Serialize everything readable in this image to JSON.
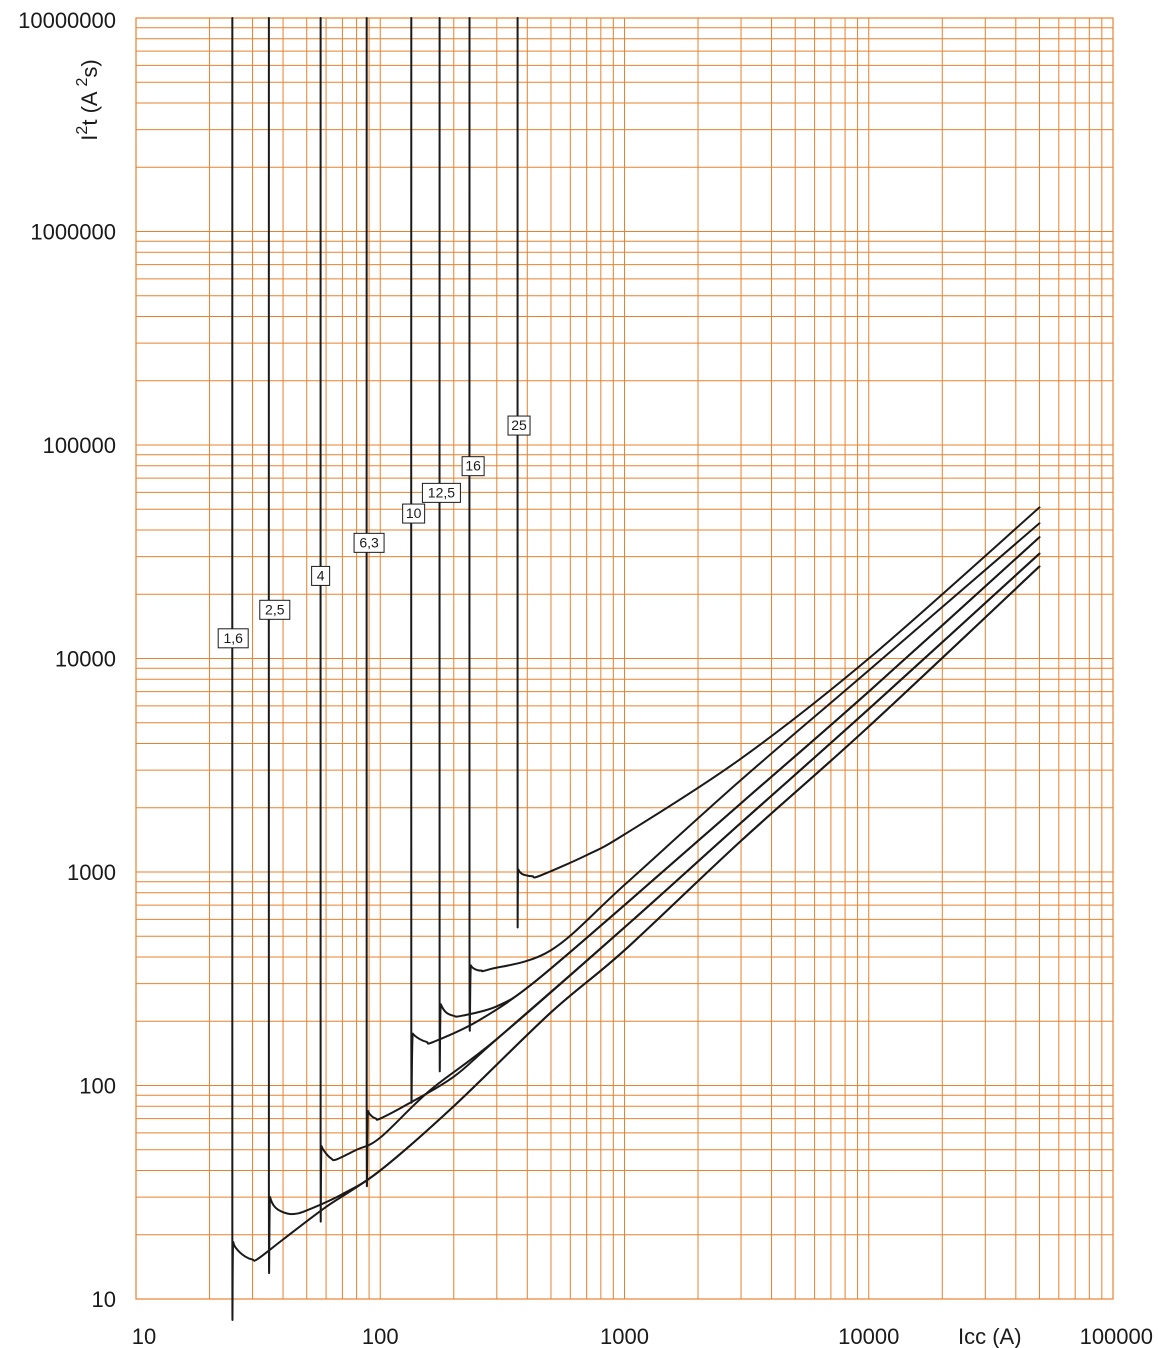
{
  "chart_data": {
    "type": "line",
    "title": "",
    "xlabel": "Icc (A)",
    "ylabel_parts": {
      "base": "I",
      "sup1": "2",
      "mid": "t (A ",
      "sup2": "2",
      "end": "s)"
    },
    "x_scale": "log",
    "y_scale": "log",
    "xlim": [
      10,
      100000
    ],
    "ylim": [
      10,
      10000000
    ],
    "grid": true,
    "grid_color": "#e8822e",
    "curve_color": "#1a1a1a",
    "x_ticks": [
      {
        "value": 10,
        "label": "10"
      },
      {
        "value": 100,
        "label": "100"
      },
      {
        "value": 1000,
        "label": "1000"
      },
      {
        "value": 10000,
        "label": "10000"
      },
      {
        "value": 100000,
        "label": "100000"
      }
    ],
    "y_ticks": [
      {
        "value": 10,
        "label": "10"
      },
      {
        "value": 100,
        "label": "100"
      },
      {
        "value": 1000,
        "label": "1000"
      },
      {
        "value": 10000,
        "label": "10000"
      },
      {
        "value": 100000,
        "label": "100000"
      },
      {
        "value": 1000000,
        "label": "1000000"
      },
      {
        "value": 10000000,
        "label": "10000000"
      }
    ],
    "series": [
      {
        "name": "1,6",
        "label_at": [
          25,
          12500
        ],
        "points": [
          [
            24.8,
            10000000
          ],
          [
            24.8,
            22
          ],
          [
            25,
            18.5
          ],
          [
            26,
            17
          ],
          [
            28,
            15.8
          ],
          [
            30,
            15.3
          ],
          [
            31.5,
            15.4
          ],
          [
            40,
            19
          ],
          [
            60,
            27
          ],
          [
            100,
            40
          ],
          [
            200,
            80
          ],
          [
            500,
            220
          ],
          [
            1000,
            430
          ],
          [
            3000,
            1400
          ],
          [
            10000,
            4800
          ],
          [
            50000,
            27000
          ]
        ]
      },
      {
        "name": "2,5",
        "label_at": [
          37,
          17000
        ],
        "points": [
          [
            35,
            10000000
          ],
          [
            35,
            35
          ],
          [
            35.4,
            30
          ],
          [
            37,
            27
          ],
          [
            40,
            25.5
          ],
          [
            44,
            25
          ],
          [
            50,
            26
          ],
          [
            70,
            31
          ],
          [
            100,
            40
          ],
          [
            200,
            80
          ],
          [
            500,
            220
          ],
          [
            1000,
            430
          ],
          [
            3000,
            1400
          ],
          [
            10000,
            4800
          ],
          [
            50000,
            27000
          ]
        ]
      },
      {
        "name": "4",
        "label_at": [
          57,
          24500
        ],
        "points": [
          [
            57,
            10000000
          ],
          [
            57,
            58
          ],
          [
            57.5,
            52
          ],
          [
            60,
            48
          ],
          [
            63,
            45.5
          ],
          [
            66,
            45
          ],
          [
            80,
            50
          ],
          [
            100,
            57
          ],
          [
            160,
            95
          ],
          [
            300,
            165
          ],
          [
            1000,
            550
          ],
          [
            3000,
            1700
          ],
          [
            10000,
            5800
          ],
          [
            50000,
            31000
          ]
        ]
      },
      {
        "name": "6,3",
        "label_at": [
          90,
          35000
        ],
        "points": [
          [
            88,
            10000000
          ],
          [
            88,
            82
          ],
          [
            89,
            76
          ],
          [
            92,
            72
          ],
          [
            96,
            70
          ],
          [
            100,
            70
          ],
          [
            130,
            82
          ],
          [
            200,
            110
          ],
          [
            300,
            165
          ],
          [
            1000,
            550
          ],
          [
            3000,
            1700
          ],
          [
            10000,
            5800
          ],
          [
            50000,
            31000
          ]
        ]
      },
      {
        "name": "10",
        "label_at": [
          137,
          48000
        ],
        "points": [
          [
            134,
            10000000
          ],
          [
            134,
            190
          ],
          [
            136,
            175
          ],
          [
            145,
            165
          ],
          [
            155,
            160
          ],
          [
            165,
            160
          ],
          [
            250,
            200
          ],
          [
            420,
            300
          ],
          [
            1000,
            700
          ],
          [
            3000,
            2100
          ],
          [
            10000,
            7000
          ],
          [
            50000,
            37000
          ]
        ]
      },
      {
        "name": "12,5",
        "label_at": [
          178,
          60000
        ],
        "points": [
          [
            175,
            10000000
          ],
          [
            175,
            260
          ],
          [
            177,
            240
          ],
          [
            186,
            220
          ],
          [
            200,
            212
          ],
          [
            215,
            212
          ],
          [
            300,
            235
          ],
          [
            420,
            300
          ],
          [
            1000,
            700
          ],
          [
            3000,
            2100
          ],
          [
            10000,
            7000
          ],
          [
            50000,
            37000
          ]
        ]
      },
      {
        "name": "16",
        "label_at": [
          240,
          80000
        ],
        "points": [
          [
            232,
            10000000
          ],
          [
            232,
            390
          ],
          [
            235,
            365
          ],
          [
            245,
            350
          ],
          [
            260,
            345
          ],
          [
            280,
            350
          ],
          [
            500,
            430
          ],
          [
            1000,
            870
          ],
          [
            3000,
            2700
          ],
          [
            10000,
            8800
          ],
          [
            50000,
            43000
          ]
        ]
      },
      {
        "name": "25",
        "label_at": [
          370,
          124000
        ],
        "points": [
          [
            365,
            10000000
          ],
          [
            365,
            1100
          ],
          [
            367,
            1030
          ],
          [
            378,
            985
          ],
          [
            395,
            965
          ],
          [
            420,
            955
          ],
          [
            450,
            960
          ],
          [
            700,
            1200
          ],
          [
            1000,
            1500
          ],
          [
            3000,
            3400
          ],
          [
            10000,
            10000
          ],
          [
            50000,
            51000
          ]
        ]
      }
    ]
  }
}
